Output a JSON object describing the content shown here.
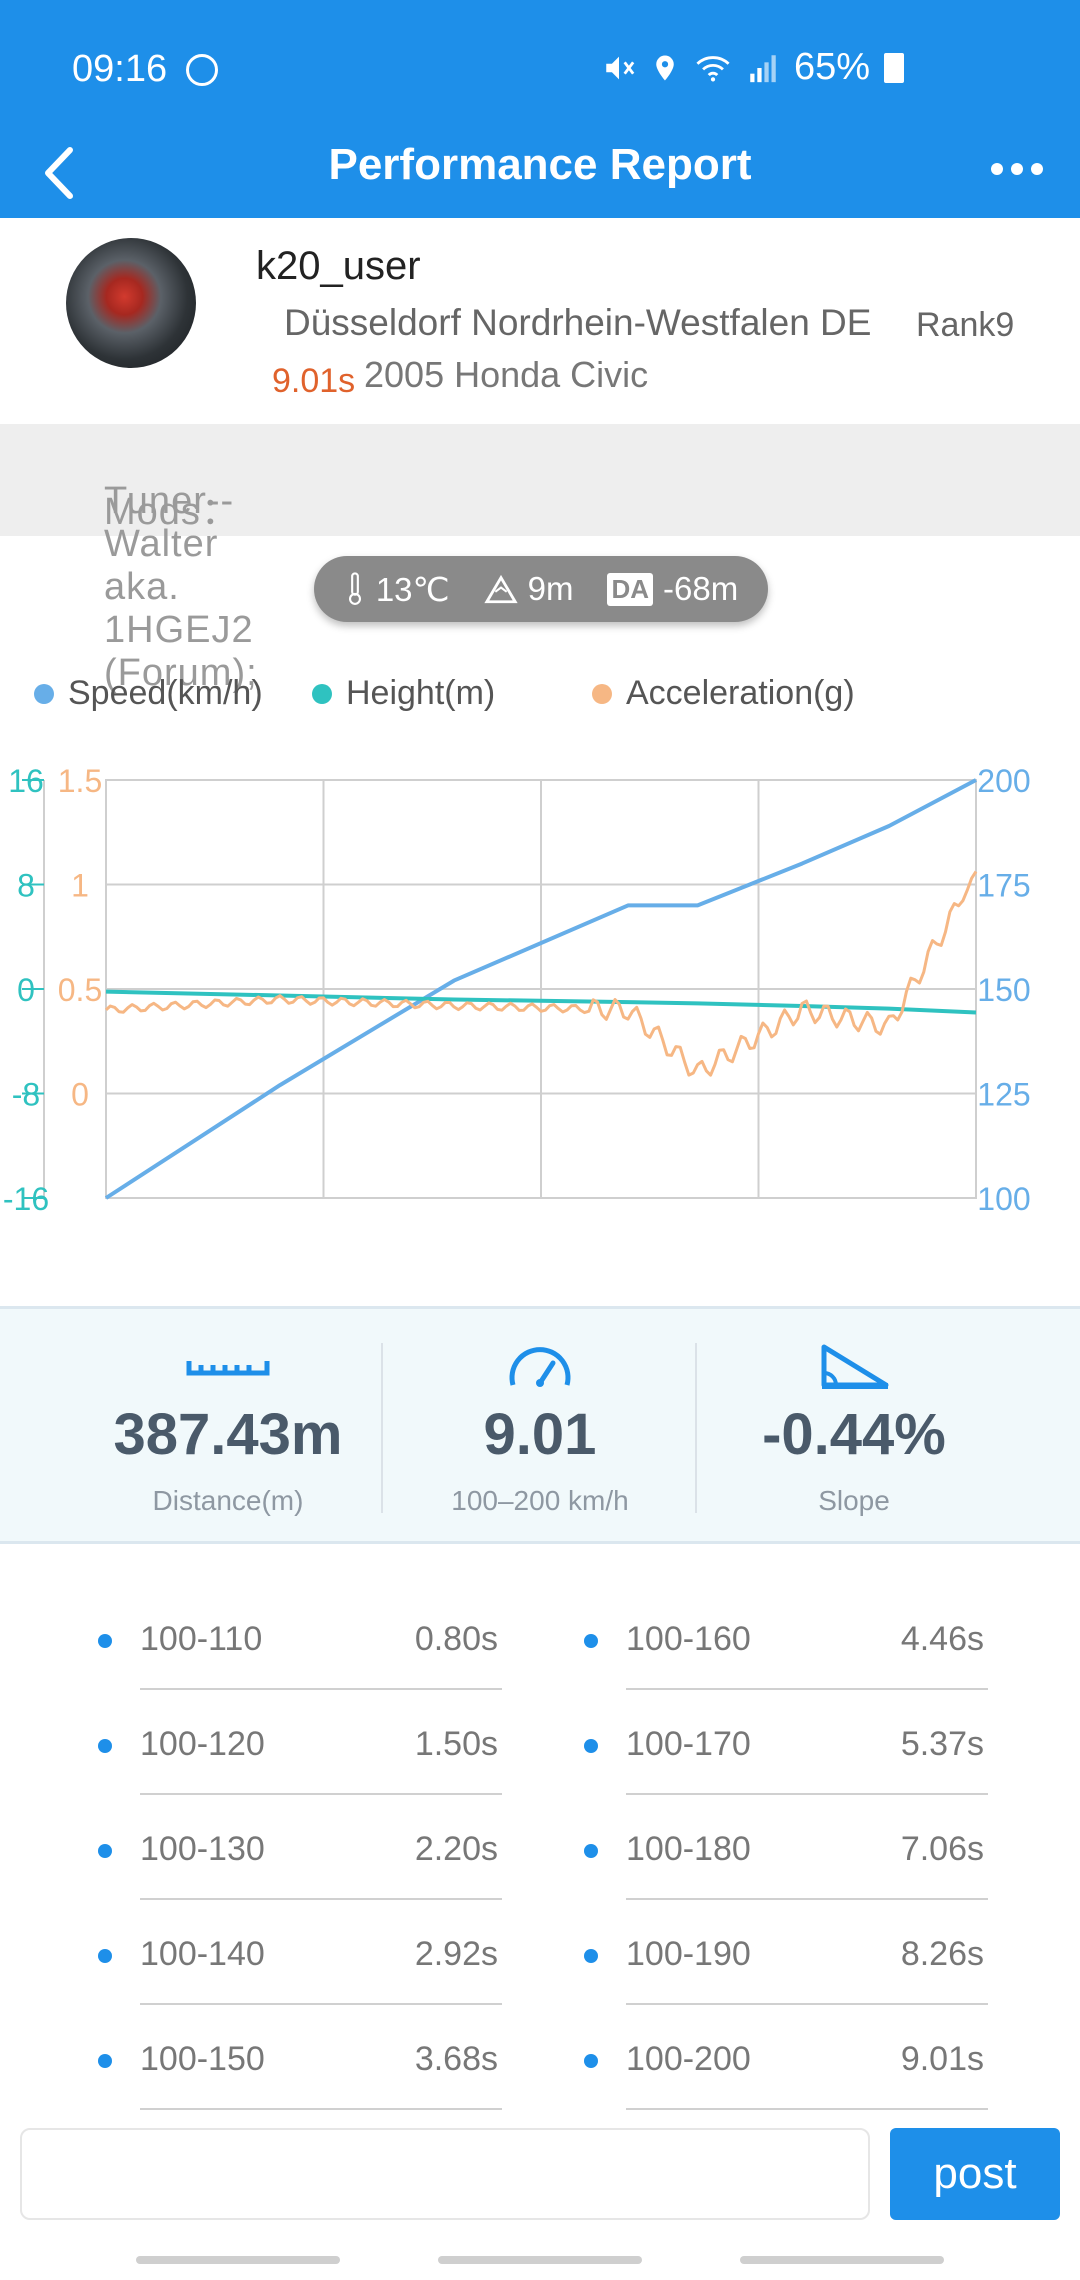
{
  "status_bar": {
    "time": "09:16",
    "battery": "65%",
    "icons": [
      "mute-icon",
      "location-icon",
      "wifi-icon",
      "signal-icon",
      "battery-icon"
    ]
  },
  "nav": {
    "title": "Performance Report",
    "back_icon": "chevron-left-icon",
    "more_icon": "more-horizontal-icon"
  },
  "profile": {
    "username": "k20_user",
    "location": "Düsseldorf Nordrhein-Westfalen DE",
    "rank": "Rank9",
    "result_time": "9.01s",
    "car": "2005 Honda Civic"
  },
  "mods": {
    "label": "Mods：",
    "value": "Tuner--Walter aka. 1HGEJ2 (Forum);"
  },
  "conditions": {
    "temperature": "13℃",
    "altitude": "9m",
    "da_label": "DA",
    "density_altitude": "-68m"
  },
  "legend": [
    {
      "name": "Speed(km/h)",
      "color": "#67aee8"
    },
    {
      "name": "Height(m)",
      "color": "#2fc2c0"
    },
    {
      "name": "Acceleration(g)",
      "color": "#f6b784"
    }
  ],
  "chart_data": {
    "type": "line",
    "axes": {
      "height_left": {
        "ticks": [
          "16",
          "8",
          "0",
          "-8",
          "-16"
        ],
        "range": [
          -16,
          16
        ],
        "color": "#2fc2c0"
      },
      "accel_left": {
        "ticks": [
          "1.5",
          "1",
          "0.5",
          "0"
        ],
        "range": [
          -0.5,
          1.5
        ],
        "color": "#f6b784"
      },
      "speed_right": {
        "ticks": [
          "200",
          "175",
          "150",
          "125",
          "100"
        ],
        "range": [
          100,
          200
        ],
        "color": "#67aee8"
      },
      "x_grid_divisions": 4
    },
    "x": [
      0,
      0.2,
      0.4,
      0.6,
      0.68,
      0.8,
      0.9,
      1.0
    ],
    "series": [
      {
        "name": "Speed(km/h)",
        "color": "#67aee8",
        "values": [
          100,
          127,
          152,
          170,
          170,
          180,
          189,
          200
        ]
      },
      {
        "name": "Height(m)",
        "color": "#2fc2c0",
        "values": [
          -0.2,
          -0.5,
          -0.8,
          -1.0,
          -1.1,
          -1.3,
          -1.5,
          -1.8
        ]
      },
      {
        "name": "Acceleration(g)",
        "color": "#f6b784",
        "values": [
          0.4,
          0.45,
          0.42,
          0.4,
          0.1,
          0.4,
          0.32,
          1.05
        ]
      }
    ]
  },
  "stats": [
    {
      "value": "387.43m",
      "label": "Distance(m)",
      "icon": "ruler-icon"
    },
    {
      "value": "9.01",
      "label": "100–200 km/h",
      "icon": "speedometer-icon"
    },
    {
      "value": "-0.44%",
      "label": "Slope",
      "icon": "slope-icon"
    }
  ],
  "splits": [
    {
      "name": "100-110",
      "time": "0.80s"
    },
    {
      "name": "100-160",
      "time": "4.46s"
    },
    {
      "name": "100-120",
      "time": "1.50s"
    },
    {
      "name": "100-170",
      "time": "5.37s"
    },
    {
      "name": "100-130",
      "time": "2.20s"
    },
    {
      "name": "100-180",
      "time": "7.06s"
    },
    {
      "name": "100-140",
      "time": "2.92s"
    },
    {
      "name": "100-190",
      "time": "8.26s"
    },
    {
      "name": "100-150",
      "time": "3.68s"
    },
    {
      "name": "100-200",
      "time": "9.01s"
    }
  ],
  "composer": {
    "placeholder": "",
    "post_label": "post"
  }
}
